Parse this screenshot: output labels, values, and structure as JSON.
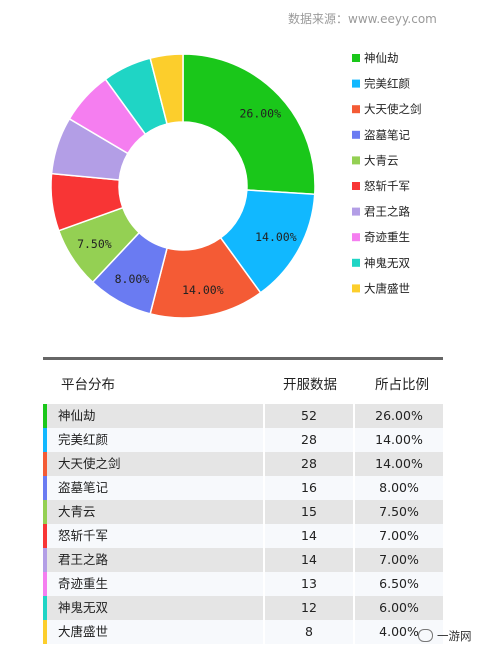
{
  "source": "数据来源：www.eeyy.com",
  "chart_data": {
    "type": "pie",
    "donut": true,
    "categories": [
      "神仙劫",
      "完美红颜",
      "大天使之剑",
      "盗墓笔记",
      "大青云",
      "怒斩千军",
      "君王之路",
      "奇迹重生",
      "神鬼无双",
      "大唐盛世"
    ],
    "values": [
      26.0,
      14.0,
      14.0,
      8.0,
      7.5,
      7.0,
      7.0,
      6.5,
      6.0,
      4.0
    ],
    "labels": [
      "26.00%",
      "14.00%",
      "14.00%",
      "8.00%",
      "7.50%",
      "",
      "",
      "",
      "",
      ""
    ],
    "colors": [
      "#1ac71a",
      "#11b8ff",
      "#f45b35",
      "#6a7bf2",
      "#94d053",
      "#f83535",
      "#b39ee6",
      "#f57ef0",
      "#1fd5c5",
      "#fcce2c"
    ],
    "legend": "right"
  },
  "table": {
    "headers": [
      "平台分布",
      "开服数据",
      "所占比例"
    ],
    "rows": [
      {
        "name": "神仙劫",
        "count": "52",
        "pct": "26.00%"
      },
      {
        "name": "完美红颜",
        "count": "28",
        "pct": "14.00%"
      },
      {
        "name": "大天使之剑",
        "count": "28",
        "pct": "14.00%"
      },
      {
        "name": "盗墓笔记",
        "count": "16",
        "pct": "8.00%"
      },
      {
        "name": "大青云",
        "count": "15",
        "pct": "7.50%"
      },
      {
        "name": "怒斩千军",
        "count": "14",
        "pct": "7.00%"
      },
      {
        "name": "君王之路",
        "count": "14",
        "pct": "7.00%"
      },
      {
        "name": "奇迹重生",
        "count": "13",
        "pct": "6.50%"
      },
      {
        "name": "神鬼无双",
        "count": "12",
        "pct": "6.00%"
      },
      {
        "name": "大唐盛世",
        "count": "8",
        "pct": "4.00%"
      }
    ]
  },
  "brand": "一游网",
  "brand_icon": "wechat-icon"
}
